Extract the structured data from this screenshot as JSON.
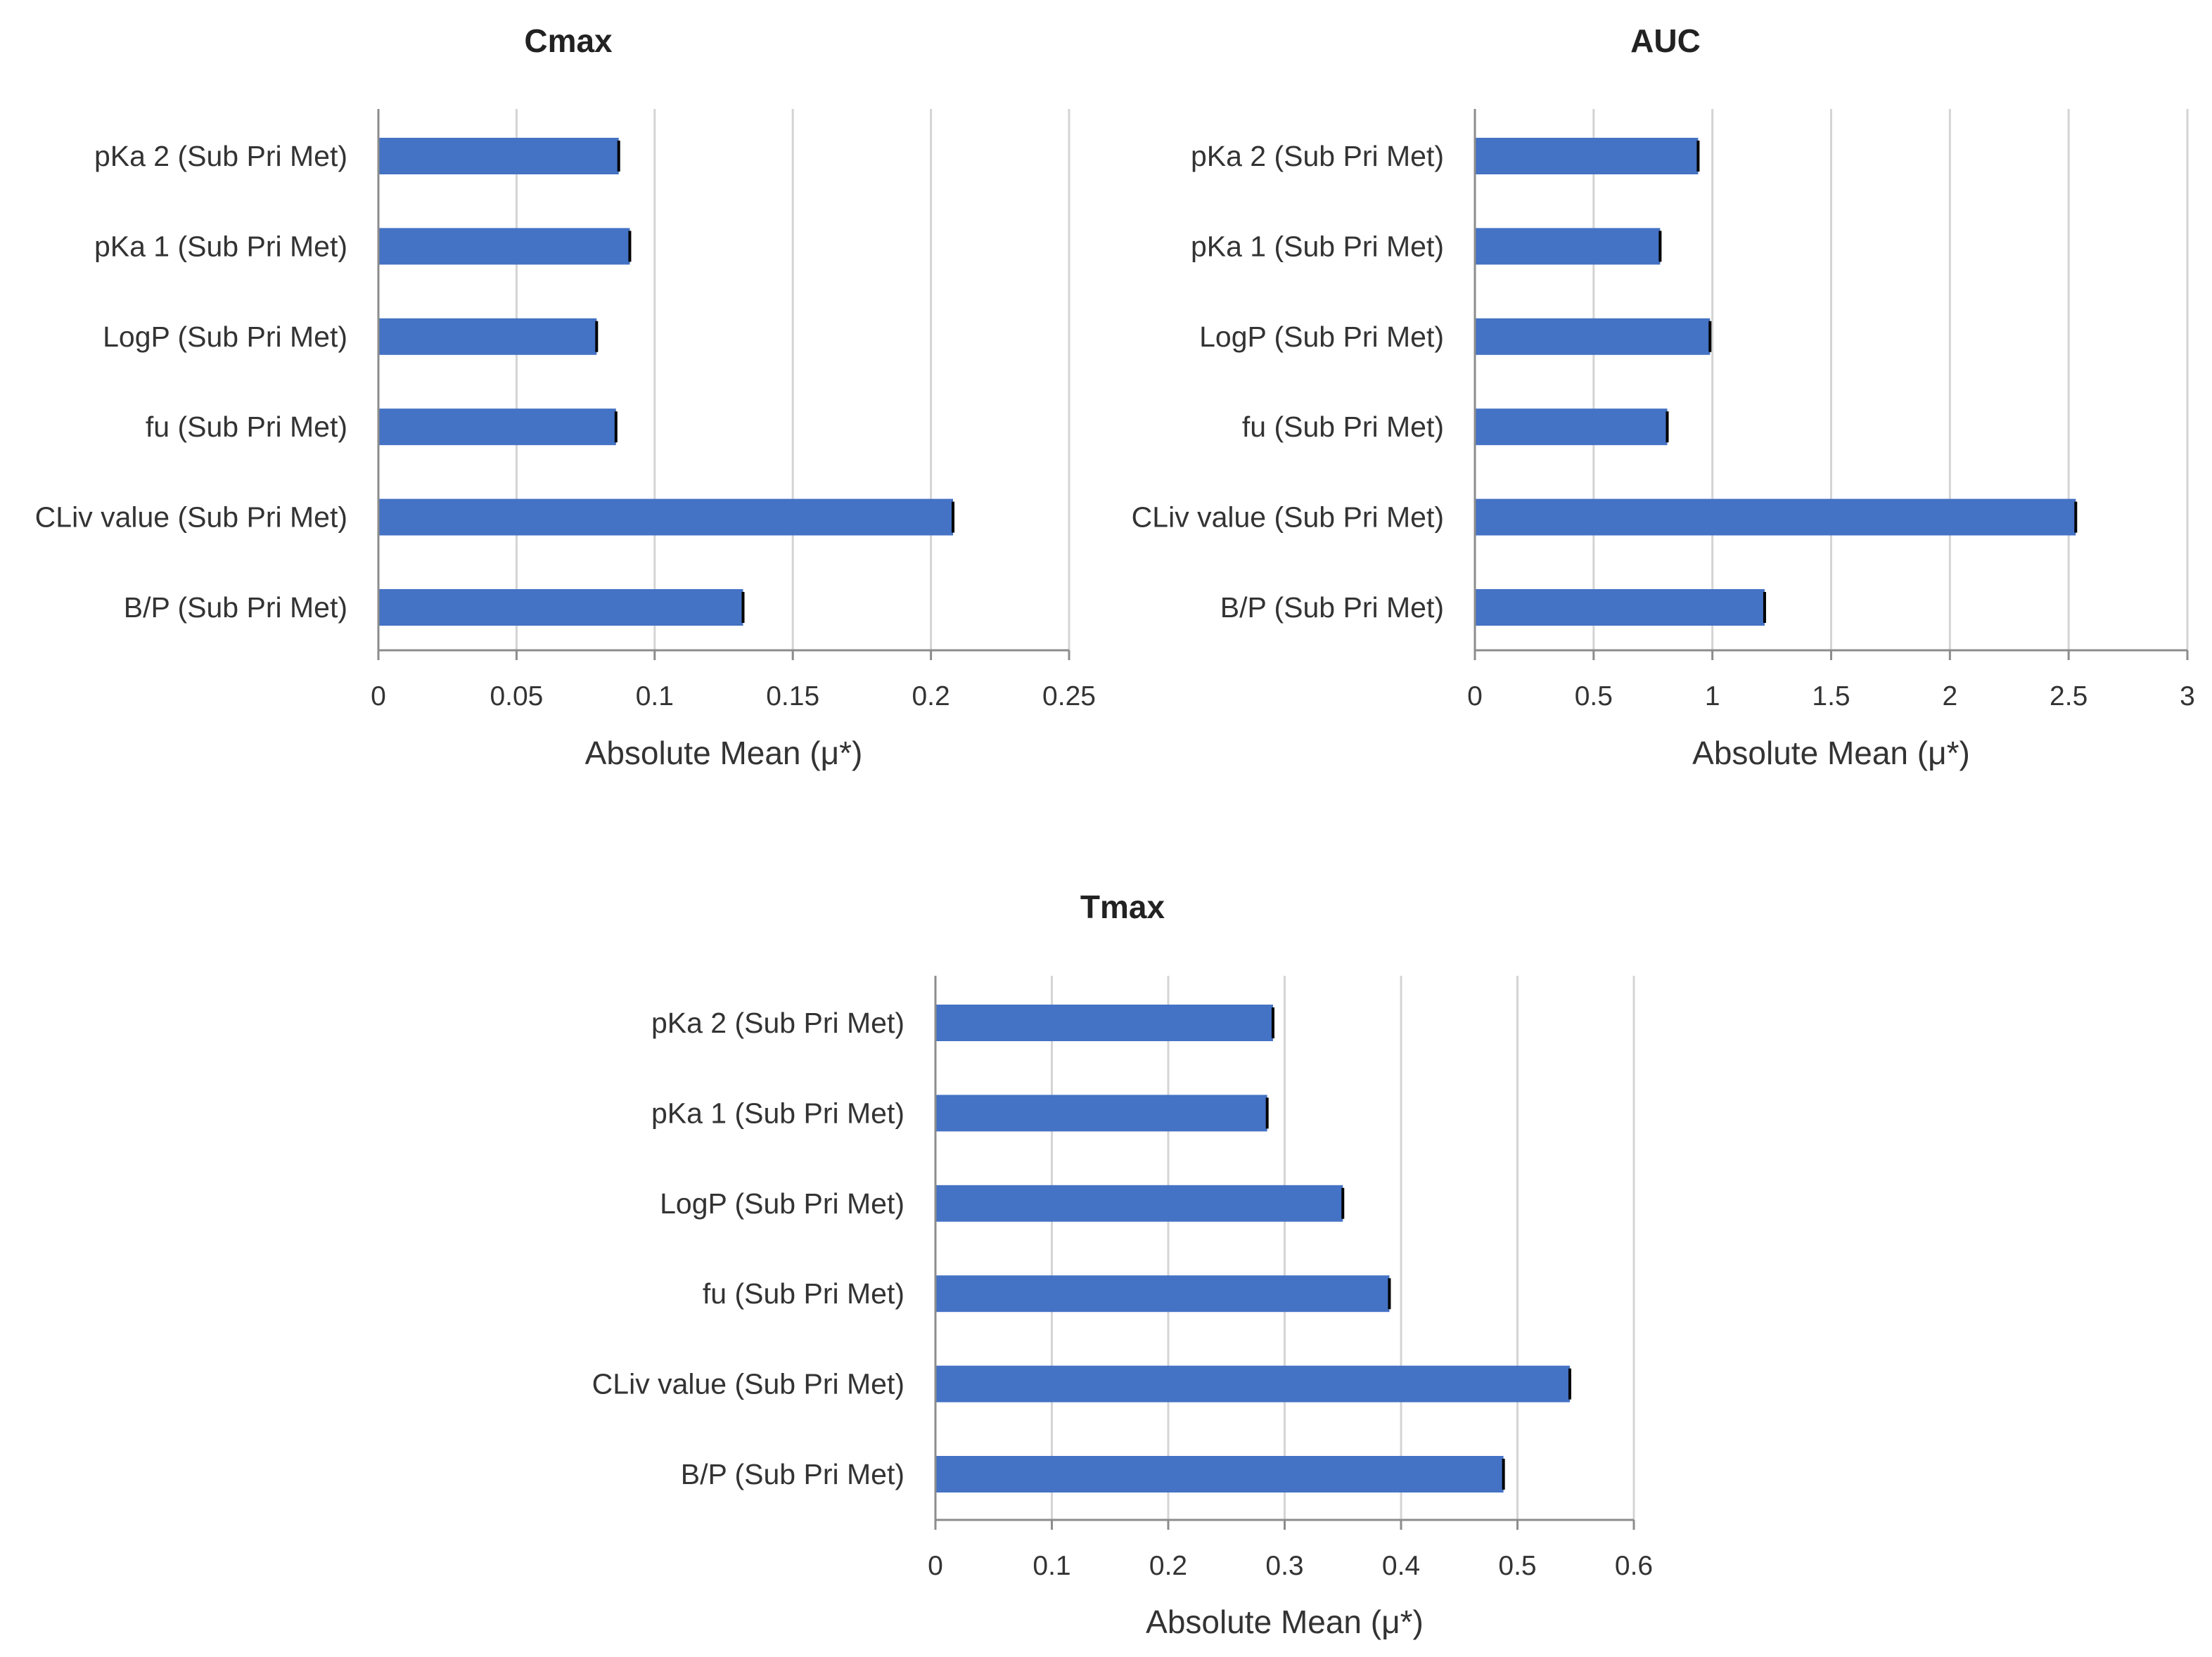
{
  "chart_data": [
    {
      "type": "bar",
      "orientation": "horizontal",
      "title": "Cmax",
      "xlabel": "Absolute Mean (μ*)",
      "ylabel": "",
      "categories": [
        "pKa 2 (Sub Pri Met)",
        "pKa 1 (Sub Pri Met)",
        "LogP (Sub Pri Met)",
        "fu (Sub Pri Met)",
        "CLiv value (Sub Pri Met)",
        "B/P (Sub Pri Met)"
      ],
      "values": [
        0.087,
        0.091,
        0.079,
        0.086,
        0.208,
        0.132
      ],
      "xlim": [
        0,
        0.25
      ],
      "ticks": [
        0,
        0.05,
        0.1,
        0.15,
        0.2,
        0.25
      ],
      "tick_labels": [
        "0",
        "0.05",
        "0.1",
        "0.15",
        "0.2",
        "0.25"
      ],
      "grid": true,
      "color": "#4472c4"
    },
    {
      "type": "bar",
      "orientation": "horizontal",
      "title": "AUC",
      "xlabel": "Absolute Mean (μ*)",
      "ylabel": "",
      "categories": [
        "pKa 2 (Sub Pri Met)",
        "pKa 1 (Sub Pri Met)",
        "LogP (Sub Pri Met)",
        "fu (Sub Pri Met)",
        "CLiv value (Sub Pri Met)",
        "B/P (Sub Pri Met)"
      ],
      "values": [
        0.94,
        0.78,
        0.99,
        0.81,
        2.53,
        1.22
      ],
      "xlim": [
        0,
        3
      ],
      "ticks": [
        0,
        0.5,
        1,
        1.5,
        2,
        2.5,
        3
      ],
      "tick_labels": [
        "0",
        "0.5",
        "1",
        "1.5",
        "2",
        "2.5",
        "3"
      ],
      "grid": true,
      "color": "#4472c4"
    },
    {
      "type": "bar",
      "orientation": "horizontal",
      "title": "Tmax",
      "xlabel": "Absolute Mean (μ*)",
      "ylabel": "",
      "categories": [
        "pKa 2 (Sub Pri Met)",
        "pKa 1 (Sub Pri Met)",
        "LogP (Sub Pri Met)",
        "fu (Sub Pri Met)",
        "CLiv value (Sub Pri Met)",
        "B/P (Sub Pri Met)"
      ],
      "values": [
        0.29,
        0.285,
        0.35,
        0.39,
        0.545,
        0.488
      ],
      "xlim": [
        0,
        0.6
      ],
      "ticks": [
        0,
        0.1,
        0.2,
        0.3,
        0.4,
        0.5,
        0.6
      ],
      "tick_labels": [
        "0",
        "0.1",
        "0.2",
        "0.3",
        "0.4",
        "0.5",
        "0.6"
      ],
      "grid": true,
      "color": "#4472c4"
    }
  ]
}
